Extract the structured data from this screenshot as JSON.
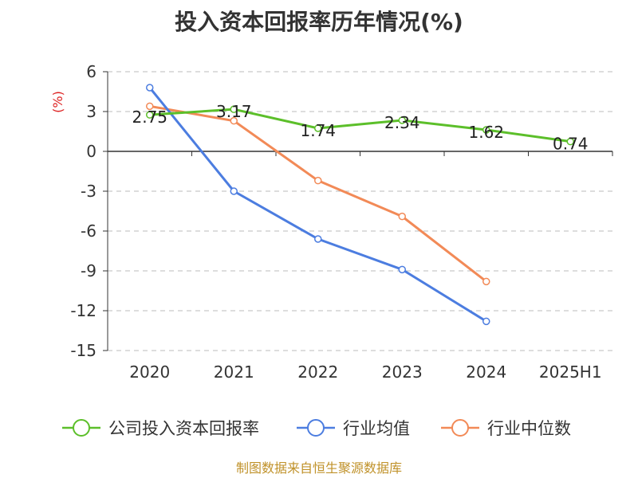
{
  "title": "投入资本回报率历年情况(%)",
  "source": "制图数据来自恒生聚源数据库",
  "y_unit": "(%)",
  "colors": {
    "company": "#5cbf2a",
    "industry_avg": "#4c7de0",
    "industry_median": "#f28a57",
    "unit": "#dd2222",
    "axis": "#333333",
    "grid": "#bbbbbb",
    "source": "#c0922a"
  },
  "chart_data": {
    "type": "line",
    "title": "投入资本回报率历年情况(%)",
    "xlabel": "",
    "ylabel": "(%)",
    "categories": [
      "2020",
      "2021",
      "2022",
      "2023",
      "2024",
      "2025H1"
    ],
    "ylim": [
      -15,
      6
    ],
    "yticks": [
      6,
      3,
      0,
      -3,
      -6,
      -9,
      -12,
      -15
    ],
    "grid": true,
    "legend_position": "bottom",
    "series": [
      {
        "name": "公司投入资本回报率",
        "color": "#5cbf2a",
        "values": [
          2.75,
          3.17,
          1.74,
          2.34,
          1.62,
          0.74
        ],
        "labels": [
          "2.75",
          "3.17",
          "1.74",
          "2.34",
          "1.62",
          "0.74"
        ]
      },
      {
        "name": "行业均值",
        "color": "#4c7de0",
        "values": [
          4.8,
          -3.0,
          -6.6,
          -8.9,
          -12.8,
          null
        ]
      },
      {
        "name": "行业中位数",
        "color": "#f28a57",
        "values": [
          3.4,
          2.3,
          -2.2,
          -4.9,
          -9.8,
          null
        ]
      }
    ]
  }
}
